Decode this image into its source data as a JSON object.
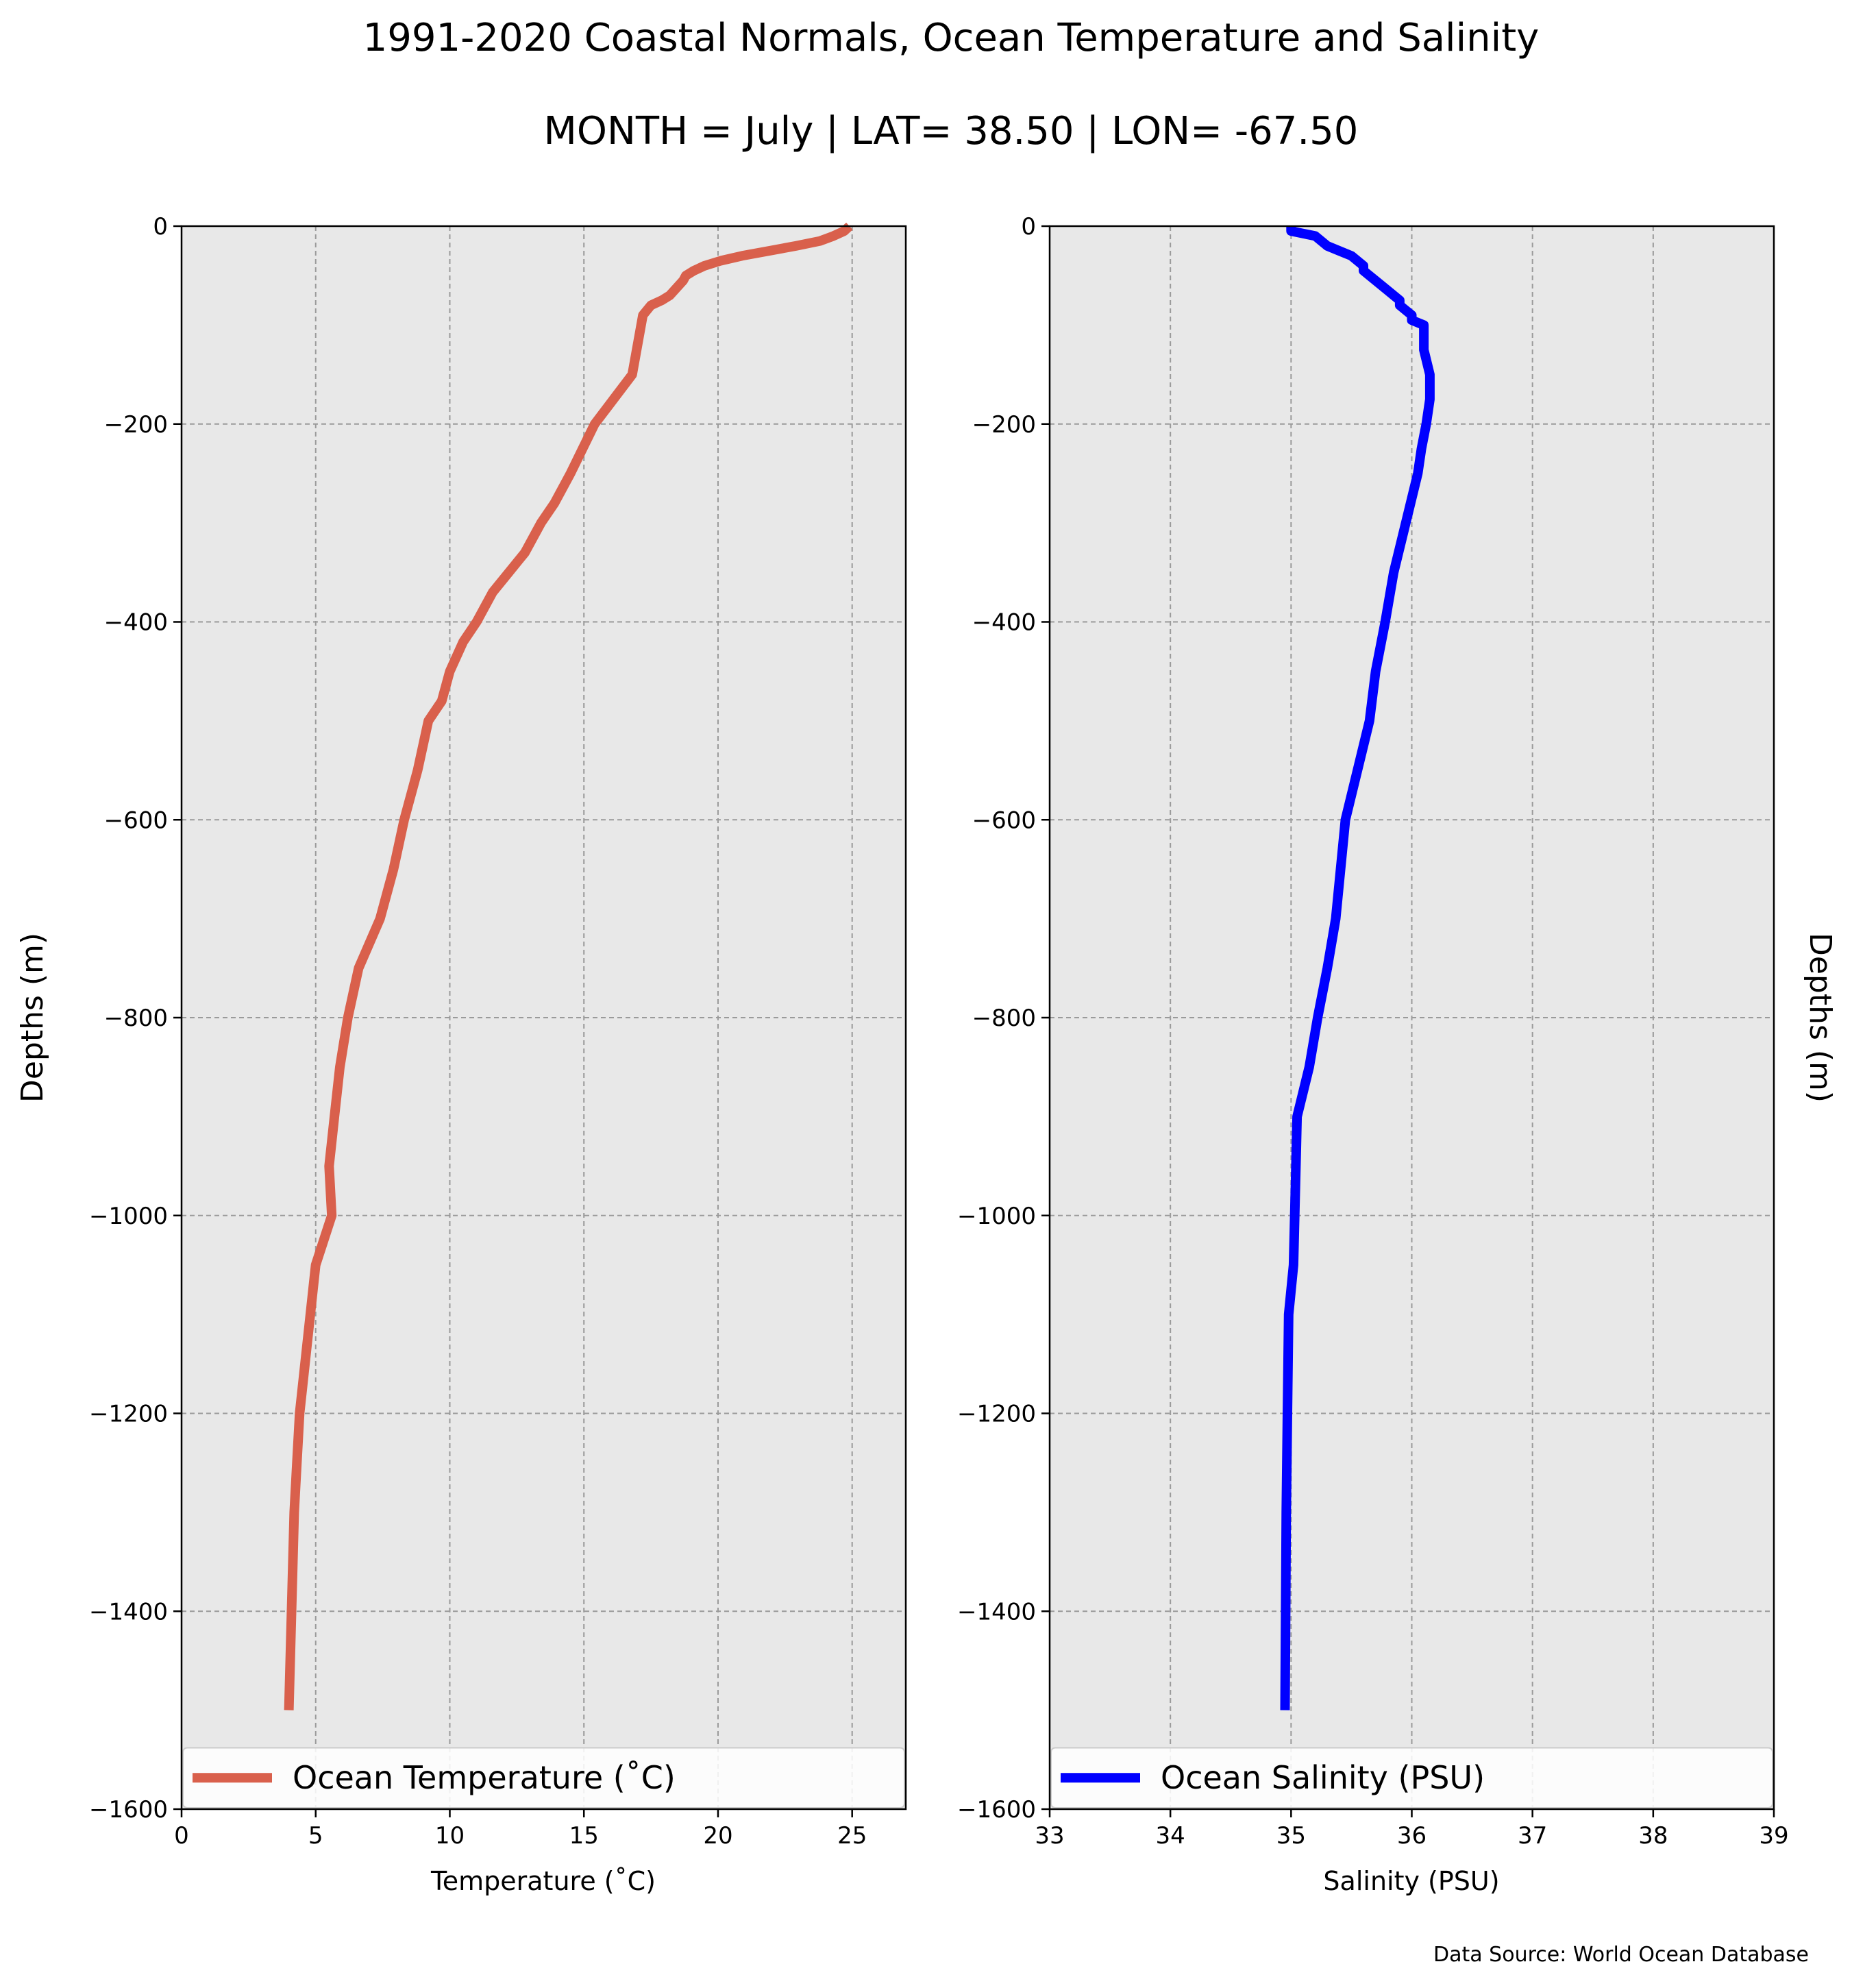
{
  "figure": {
    "title": "1991-2020 Coastal Normals, Ocean Temperature and Salinity",
    "subtitle": "MONTH = July | LAT= 38.50 | LON= -67.50",
    "source_note": "Data Source: World Ocean Database"
  },
  "chart_data": [
    {
      "type": "line",
      "xlabel": "Temperature ($^\\circ$C)",
      "xlabel_display": "Temperature (˚C)",
      "ylabel": "Depths (m)",
      "xlim": [
        0,
        27
      ],
      "ylim": [
        -1600,
        0
      ],
      "xticks": [
        0,
        5,
        10,
        15,
        20,
        25
      ],
      "yticks": [
        0,
        -200,
        -400,
        -600,
        -800,
        -1000,
        -1200,
        -1400,
        -1600
      ],
      "ytick_labels": [
        "0",
        "−200",
        "−400",
        "−600",
        "−800",
        "−1000",
        "−1200",
        "−1400",
        "−1600"
      ],
      "grid": true,
      "legend_placement": "bottom",
      "series": [
        {
          "name": "Ocean Temperature (˚C)",
          "color": "#d9604c",
          "x": [
            24.9,
            24.7,
            24.3,
            23.8,
            22.9,
            21.9,
            20.9,
            20.1,
            19.5,
            19.1,
            18.8,
            18.7,
            18.2,
            17.9,
            17.5,
            17.2,
            16.8,
            15.4,
            14.5,
            13.9,
            13.4,
            12.8,
            12.2,
            11.6,
            11.0,
            10.5,
            10.0,
            9.7,
            9.2,
            8.8,
            8.3,
            7.9,
            7.4,
            6.6,
            6.2,
            5.9,
            5.7,
            5.5,
            5.6,
            5.0,
            4.8,
            4.6,
            4.4,
            4.3,
            4.2,
            4.1,
            4.0
          ],
          "y": [
            0,
            -5,
            -10,
            -15,
            -20,
            -25,
            -30,
            -35,
            -40,
            -45,
            -50,
            -55,
            -70,
            -75,
            -80,
            -90,
            -150,
            -200,
            -250,
            -280,
            -300,
            -330,
            -350,
            -370,
            -400,
            -420,
            -450,
            -480,
            -500,
            -550,
            -600,
            -650,
            -700,
            -750,
            -800,
            -850,
            -900,
            -950,
            -1000,
            -1050,
            -1100,
            -1150,
            -1200,
            -1250,
            -1300,
            -1400,
            -1500
          ]
        }
      ]
    },
    {
      "type": "line",
      "xlabel": "Salinity (PSU)",
      "ylabel": "Depths (m)",
      "xlim": [
        33,
        39
      ],
      "ylim": [
        -1600,
        0
      ],
      "xticks": [
        33,
        34,
        35,
        36,
        37,
        38,
        39
      ],
      "yticks": [
        0,
        -200,
        -400,
        -600,
        -800,
        -1000,
        -1200,
        -1400,
        -1600
      ],
      "ytick_labels": [
        "0",
        "−200",
        "−400",
        "−600",
        "−800",
        "−1000",
        "−1200",
        "−1400",
        "−1600"
      ],
      "grid": true,
      "legend_placement": "bottom",
      "series": [
        {
          "name": "Ocean Salinity (PSU)",
          "color": "#0000ff",
          "x": [
            35.0,
            35.0,
            35.2,
            35.3,
            35.4,
            35.5,
            35.6,
            35.6,
            35.7,
            35.8,
            35.9,
            35.9,
            36.0,
            36.0,
            36.1,
            36.1,
            36.15,
            36.15,
            36.12,
            36.08,
            36.05,
            35.95,
            35.85,
            35.78,
            35.7,
            35.65,
            35.55,
            35.45,
            35.37,
            35.3,
            35.22,
            35.15,
            35.05,
            35.04,
            35.02,
            34.98,
            34.97,
            34.96,
            34.95
          ],
          "y": [
            0,
            -5,
            -10,
            -20,
            -25,
            -30,
            -40,
            -45,
            -55,
            -65,
            -75,
            -80,
            -90,
            -95,
            -100,
            -125,
            -150,
            -175,
            -200,
            -225,
            -250,
            -300,
            -350,
            -400,
            -450,
            -500,
            -550,
            -600,
            -700,
            -750,
            -800,
            -850,
            -900,
            -950,
            -1050,
            -1100,
            -1200,
            -1300,
            -1500
          ]
        }
      ]
    }
  ]
}
